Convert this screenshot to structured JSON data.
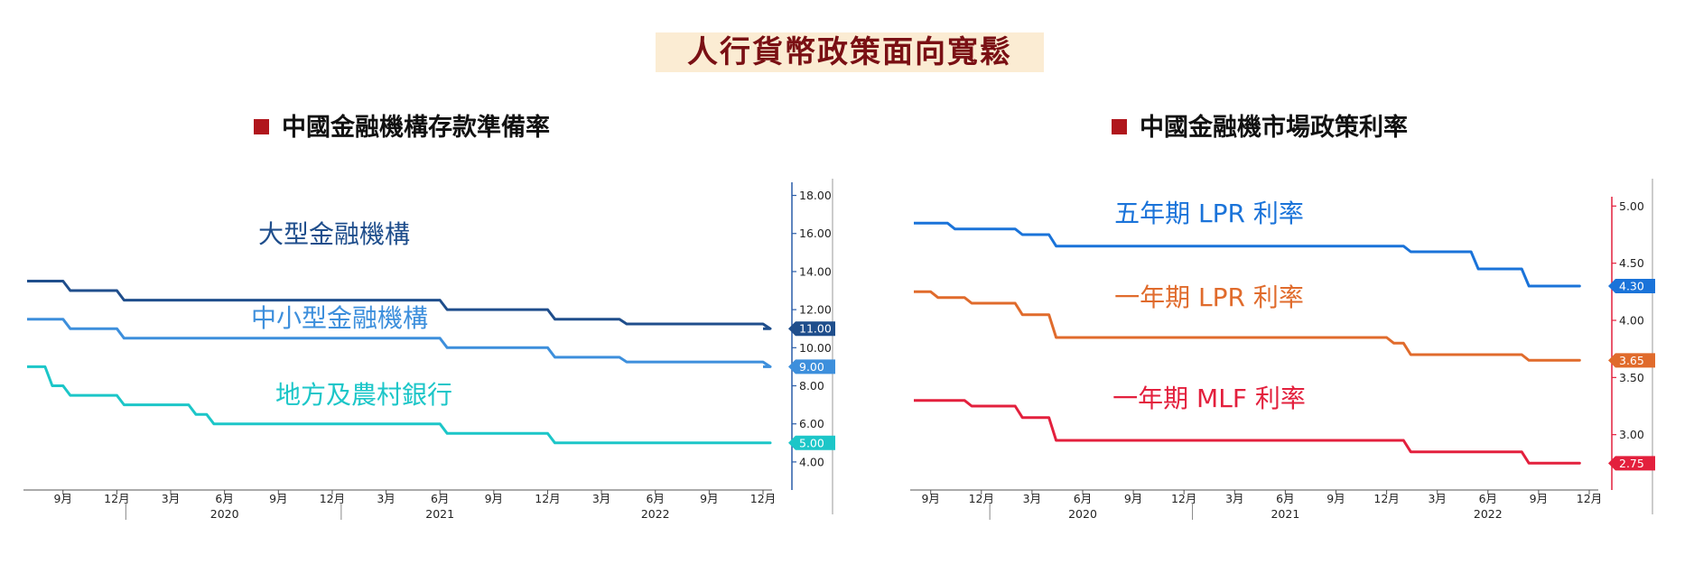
{
  "page": {
    "title": "人行貨幣政策面向寬鬆"
  },
  "chart_data": [
    {
      "type": "line",
      "title": "中國金融機構存款準備率",
      "step": true,
      "x_range": [
        "2019-07",
        "2022-12"
      ],
      "ylim": [
        3.0,
        18.5
      ],
      "y_ticks": [
        "18.00",
        "16.00",
        "14.00",
        "12.00",
        "11.00",
        "10.00",
        "9.00",
        "8.00",
        "6.00",
        "5.00",
        "4.00"
      ],
      "x_ticks": [
        {
          "label": "9月",
          "date": "2019-09"
        },
        {
          "label": "12月",
          "date": "2019-12"
        },
        {
          "label": "3月",
          "date": "2020-03"
        },
        {
          "label": "6月",
          "date": "2020-06"
        },
        {
          "label": "9月",
          "date": "2020-09"
        },
        {
          "label": "12月",
          "date": "2020-12"
        },
        {
          "label": "3月",
          "date": "2021-03"
        },
        {
          "label": "6月",
          "date": "2021-06"
        },
        {
          "label": "9月",
          "date": "2021-09"
        },
        {
          "label": "12月",
          "date": "2021-12"
        },
        {
          "label": "3月",
          "date": "2022-03"
        },
        {
          "label": "6月",
          "date": "2022-06"
        },
        {
          "label": "9月",
          "date": "2022-09"
        },
        {
          "label": "12月",
          "date": "2022-12"
        }
      ],
      "years": [
        {
          "label": "2020",
          "date": "2020-06"
        },
        {
          "label": "2021",
          "date": "2021-06"
        },
        {
          "label": "2022",
          "date": "2022-06"
        }
      ],
      "series": [
        {
          "name": "大型金融機構",
          "color": "#1f4e8c",
          "last_label": "11.00",
          "points": [
            [
              "2019-07",
              13.5
            ],
            [
              "2019-09",
              13.0
            ],
            [
              "2019-12",
              12.5
            ],
            [
              "2021-06",
              12.0
            ],
            [
              "2021-12",
              11.5
            ],
            [
              "2022-04",
              11.25
            ],
            [
              "2022-12",
              11.0
            ]
          ]
        },
        {
          "name": "中小型金融機構",
          "color": "#3d8fdc",
          "last_label": "9.00",
          "points": [
            [
              "2019-07",
              11.5
            ],
            [
              "2019-09",
              11.0
            ],
            [
              "2019-12",
              10.5
            ],
            [
              "2021-06",
              10.0
            ],
            [
              "2021-12",
              9.5
            ],
            [
              "2022-04",
              9.25
            ],
            [
              "2022-12",
              9.0
            ]
          ]
        },
        {
          "name": "地方及農村銀行",
          "color": "#1cc6c8",
          "last_label": "5.00",
          "points": [
            [
              "2019-07",
              9.0
            ],
            [
              "2019-08",
              8.0
            ],
            [
              "2019-09",
              7.5
            ],
            [
              "2019-12",
              7.0
            ],
            [
              "2020-04",
              6.5
            ],
            [
              "2020-05",
              6.0
            ],
            [
              "2021-06",
              5.5
            ],
            [
              "2021-12",
              5.0
            ],
            [
              "2022-12",
              5.0
            ]
          ]
        }
      ]
    },
    {
      "type": "line",
      "title": "中國金融機市場政策利率",
      "step": true,
      "x_range": [
        "2019-08",
        "2022-12"
      ],
      "ylim": [
        2.5,
        5.05
      ],
      "y_ticks": [
        "5.00",
        "4.50",
        "4.30",
        "4.00",
        "3.65",
        "3.50",
        "3.00",
        "2.75"
      ],
      "x_ticks": [
        {
          "label": "9月",
          "date": "2019-09"
        },
        {
          "label": "12月",
          "date": "2019-12"
        },
        {
          "label": "3月",
          "date": "2020-03"
        },
        {
          "label": "6月",
          "date": "2020-06"
        },
        {
          "label": "9月",
          "date": "2020-09"
        },
        {
          "label": "12月",
          "date": "2020-12"
        },
        {
          "label": "3月",
          "date": "2021-03"
        },
        {
          "label": "6月",
          "date": "2021-06"
        },
        {
          "label": "9月",
          "date": "2021-09"
        },
        {
          "label": "12月",
          "date": "2021-12"
        },
        {
          "label": "3月",
          "date": "2022-03"
        },
        {
          "label": "6月",
          "date": "2022-06"
        },
        {
          "label": "9月",
          "date": "2022-09"
        },
        {
          "label": "12月",
          "date": "2022-12"
        }
      ],
      "years": [
        {
          "label": "2020",
          "date": "2020-06"
        },
        {
          "label": "2021",
          "date": "2021-06"
        },
        {
          "label": "2022",
          "date": "2022-06"
        }
      ],
      "series": [
        {
          "name": "五年期 LPR 利率",
          "color": "#1a73d9",
          "last_label": "4.30",
          "points": [
            [
              "2019-08",
              4.85
            ],
            [
              "2019-10",
              4.8
            ],
            [
              "2019-12",
              4.8
            ],
            [
              "2020-02",
              4.75
            ],
            [
              "2020-04",
              4.65
            ],
            [
              "2021-12",
              4.65
            ],
            [
              "2022-01",
              4.6
            ],
            [
              "2022-05",
              4.45
            ],
            [
              "2022-08",
              4.3
            ],
            [
              "2022-11",
              4.3
            ]
          ]
        },
        {
          "name": "一年期 LPR 利率",
          "color": "#e06b2c",
          "last_label": "3.65",
          "points": [
            [
              "2019-08",
              4.25
            ],
            [
              "2019-09",
              4.2
            ],
            [
              "2019-11",
              4.15
            ],
            [
              "2020-02",
              4.05
            ],
            [
              "2020-04",
              3.85
            ],
            [
              "2021-12",
              3.8
            ],
            [
              "2022-01",
              3.7
            ],
            [
              "2022-08",
              3.65
            ],
            [
              "2022-11",
              3.65
            ]
          ]
        },
        {
          "name": "一年期 MLF 利率",
          "color": "#e3203d",
          "last_label": "2.75",
          "points": [
            [
              "2019-08",
              3.3
            ],
            [
              "2019-11",
              3.25
            ],
            [
              "2020-02",
              3.15
            ],
            [
              "2020-04",
              2.95
            ],
            [
              "2022-01",
              2.85
            ],
            [
              "2022-08",
              2.75
            ],
            [
              "2022-11",
              2.75
            ]
          ]
        }
      ]
    }
  ]
}
